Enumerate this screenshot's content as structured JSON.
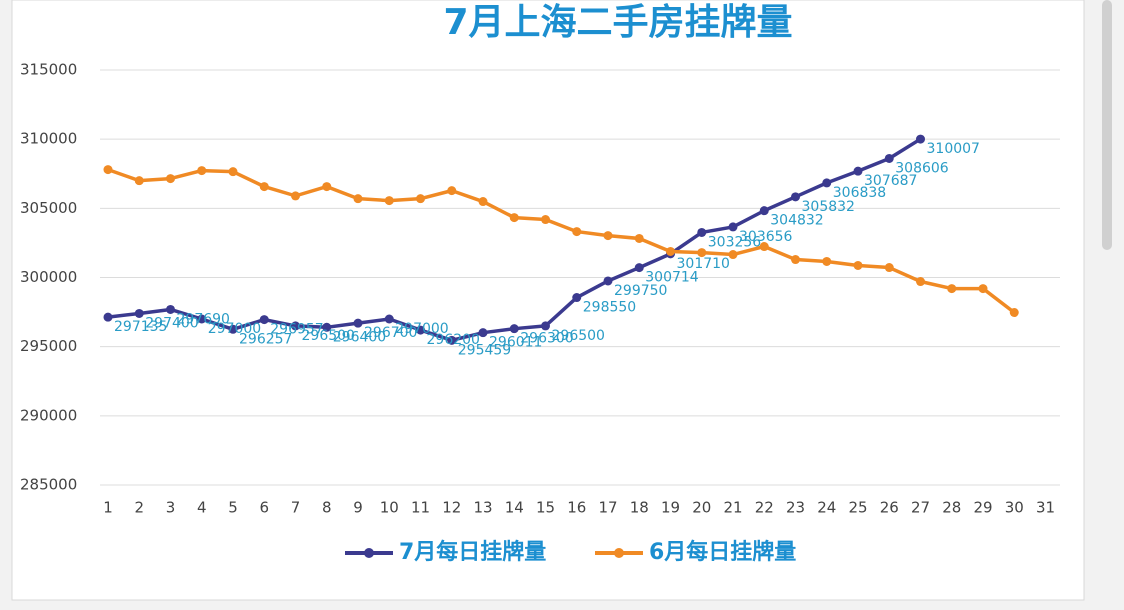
{
  "chart_data": {
    "type": "line",
    "title": "7月上海二手房挂牌量",
    "categories": [
      "1",
      "2",
      "3",
      "4",
      "5",
      "6",
      "7",
      "8",
      "9",
      "10",
      "11",
      "12",
      "13",
      "14",
      "15",
      "16",
      "17",
      "18",
      "19",
      "20",
      "21",
      "22",
      "23",
      "24",
      "25",
      "26",
      "27",
      "28",
      "29",
      "30",
      "31"
    ],
    "series": [
      {
        "name": "7月每日挂牌量",
        "color": "#3b3a8f",
        "values": [
          297135,
          297400,
          297690,
          297000,
          296257,
          296957,
          296500,
          296400,
          296700,
          297000,
          296200,
          295459,
          296011,
          296300,
          296500,
          298550,
          299750,
          300714,
          301710,
          303256,
          303656,
          304832,
          305832,
          306838,
          307687,
          308606,
          310007,
          null,
          null,
          null,
          null
        ]
      },
      {
        "name": "6月每日挂牌量",
        "color": "#f08a24",
        "values": [
          307800,
          307000,
          307150,
          307730,
          307650,
          306570,
          305900,
          306570,
          305700,
          305560,
          305700,
          306280,
          305490,
          304330,
          304190,
          303320,
          303030,
          302820,
          301880,
          301800,
          301660,
          302240,
          301300,
          301160,
          300870,
          300720,
          299710,
          299200,
          299200,
          297470,
          null
        ]
      }
    ],
    "ylim": [
      285000,
      315000
    ],
    "yticks": [
      285000,
      290000,
      295000,
      300000,
      305000,
      310000,
      315000
    ],
    "grid": true,
    "legend": "bottom"
  }
}
